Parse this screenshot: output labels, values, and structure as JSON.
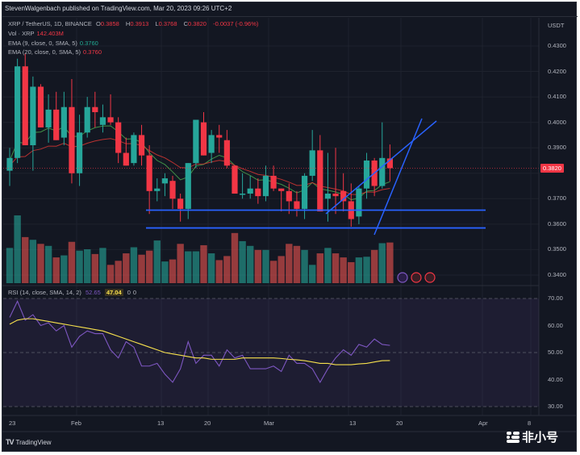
{
  "publisher": "StevenWalgenbach published on TradingView.com, Mar 20, 2023 09:26 UTC+2",
  "legend": {
    "symbol": "XRP / TetherUS, 1D, BINANCE",
    "o_label": "O",
    "o_value": "0.3858",
    "h_label": "H",
    "h_value": "0.3913",
    "l_label": "L",
    "l_value": "0.3768",
    "c_label": "C",
    "c_value": "0.3820",
    "change": "-0.0037 (-0.96%)",
    "vol_label": "Vol · XRP",
    "vol_value": "142.403M",
    "ema9_label": "EMA (9, close, 0, SMA, 5)",
    "ema9_value": "0.3760",
    "ema20_label": "EMA (20, close, 0, SMA, 5)",
    "ema20_value": "0.3760"
  },
  "rsi_legend": {
    "label": "RSI (14, close, SMA, 14, 2)",
    "rsi_value": "52.65",
    "sma_value": "47.04",
    "extra1": "0",
    "extra2": "0"
  },
  "price_axis": {
    "unit": "USDT",
    "ticks": [
      "0.4300",
      "0.4200",
      "0.4100",
      "0.4000",
      "0.3900",
      "0.3700",
      "0.3600",
      "0.3500",
      "0.3400"
    ],
    "current_price": "0.3820"
  },
  "rsi_axis": {
    "ticks": [
      "70.00",
      "60.00",
      "50.00",
      "40.00",
      "30.00"
    ]
  },
  "time_axis": {
    "ticks": [
      "23",
      "Feb",
      "13",
      "20",
      "Mar",
      "13",
      "20",
      "Apr",
      "8"
    ]
  },
  "footer": {
    "brand": "TradingView",
    "watermark": "非小号"
  },
  "colors": {
    "background": "#131722",
    "up": "#26a69a",
    "down": "#f23645",
    "ema9": "#4caf50",
    "ema20": "#e53935",
    "trendline": "#2962ff",
    "rsi": "#7e57c2",
    "rsi_sma": "#f7e14d"
  },
  "chart_data": [
    {
      "type": "candlestick",
      "title": "XRP / TetherUS, 1D, BINANCE",
      "ylabel": "USDT",
      "ylim": [
        0.337,
        0.435
      ],
      "x_tick_labels": [
        "23",
        "Feb",
        "13",
        "20",
        "Mar",
        "13",
        "20",
        "Apr",
        "8"
      ],
      "candles": [
        [
          0.381,
          0.39,
          0.375,
          0.386
        ],
        [
          0.386,
          0.425,
          0.384,
          0.422
        ],
        [
          0.422,
          0.427,
          0.391,
          0.391
        ],
        [
          0.391,
          0.418,
          0.381,
          0.414
        ],
        [
          0.414,
          0.415,
          0.398,
          0.398
        ],
        [
          0.398,
          0.411,
          0.392,
          0.405
        ],
        [
          0.405,
          0.412,
          0.393,
          0.393
        ],
        [
          0.394,
          0.412,
          0.391,
          0.406
        ],
        [
          0.406,
          0.417,
          0.376,
          0.38
        ],
        [
          0.38,
          0.403,
          0.375,
          0.396
        ],
        [
          0.396,
          0.41,
          0.394,
          0.406
        ],
        [
          0.406,
          0.412,
          0.398,
          0.404
        ],
        [
          0.399,
          0.407,
          0.396,
          0.402
        ],
        [
          0.402,
          0.411,
          0.399,
          0.4
        ],
        [
          0.4,
          0.402,
          0.384,
          0.388
        ],
        [
          0.388,
          0.394,
          0.383,
          0.383
        ],
        [
          0.384,
          0.396,
          0.383,
          0.395
        ],
        [
          0.395,
          0.399,
          0.383,
          0.387
        ],
        [
          0.387,
          0.391,
          0.364,
          0.373
        ],
        [
          0.373,
          0.378,
          0.369,
          0.374
        ],
        [
          0.376,
          0.38,
          0.371,
          0.378
        ],
        [
          0.377,
          0.379,
          0.366,
          0.37
        ],
        [
          0.37,
          0.372,
          0.361,
          0.366
        ],
        [
          0.366,
          0.384,
          0.362,
          0.384
        ],
        [
          0.384,
          0.401,
          0.382,
          0.401
        ],
        [
          0.4,
          0.404,
          0.387,
          0.387
        ],
        [
          0.388,
          0.397,
          0.384,
          0.395
        ],
        [
          0.395,
          0.399,
          0.388,
          0.394
        ],
        [
          0.393,
          0.397,
          0.382,
          0.383
        ],
        [
          0.383,
          0.383,
          0.372,
          0.372
        ],
        [
          0.372,
          0.38,
          0.37,
          0.372
        ],
        [
          0.372,
          0.379,
          0.37,
          0.374
        ],
        [
          0.374,
          0.378,
          0.368,
          0.371
        ],
        [
          0.371,
          0.383,
          0.369,
          0.379
        ],
        [
          0.379,
          0.383,
          0.373,
          0.374
        ],
        [
          0.374,
          0.374,
          0.365,
          0.373
        ],
        [
          0.373,
          0.376,
          0.364,
          0.369
        ],
        [
          0.369,
          0.373,
          0.363,
          0.366
        ],
        [
          0.366,
          0.38,
          0.362,
          0.379
        ],
        [
          0.379,
          0.397,
          0.377,
          0.389
        ],
        [
          0.389,
          0.395,
          0.365,
          0.365
        ],
        [
          0.37,
          0.388,
          0.361,
          0.372
        ],
        [
          0.372,
          0.39,
          0.364,
          0.371
        ],
        [
          0.373,
          0.38,
          0.365,
          0.369
        ],
        [
          0.369,
          0.376,
          0.359,
          0.362
        ],
        [
          0.363,
          0.375,
          0.36,
          0.374
        ],
        [
          0.374,
          0.388,
          0.37,
          0.385
        ],
        [
          0.385,
          0.386,
          0.371,
          0.375
        ],
        [
          0.375,
          0.4,
          0.374,
          0.386
        ],
        [
          0.3858,
          0.3913,
          0.3768,
          0.382
        ]
      ],
      "volume": [
        52,
        100,
        68,
        64,
        58,
        55,
        38,
        41,
        61,
        48,
        50,
        43,
        52,
        27,
        33,
        44,
        53,
        42,
        48,
        63,
        32,
        35,
        58,
        47,
        47,
        56,
        44,
        34,
        40,
        74,
        62,
        55,
        49,
        49,
        33,
        40,
        58,
        55,
        49,
        27,
        44,
        52,
        44,
        38,
        31,
        38,
        39,
        49,
        59,
        60
      ],
      "ema9_value": 0.376,
      "ema20_value": 0.376,
      "horizontal_levels": [
        0.3655,
        0.3585
      ],
      "trendlines": [
        {
          "from_index": 38,
          "from_price": 0.3675,
          "to_index": 52,
          "to_price": 0.4
        },
        {
          "from_index": 43,
          "from_price": 0.3555,
          "to_index": 50,
          "to_price": 0.402
        }
      ]
    },
    {
      "type": "line",
      "title": "RSI (14, close, SMA, 14, 2)",
      "ylim": [
        28,
        72
      ],
      "y_ticks": [
        70,
        60,
        50,
        40,
        30
      ],
      "series": [
        {
          "name": "RSI",
          "values": [
            63,
            69,
            62,
            64,
            60,
            61,
            58,
            60,
            52,
            56,
            58,
            57,
            57,
            51,
            48,
            54,
            52,
            45,
            45,
            46,
            42,
            39,
            44,
            54,
            46,
            49,
            49,
            45,
            51,
            48,
            49,
            44,
            44,
            44,
            45,
            43,
            49,
            46,
            46,
            44,
            39,
            44,
            48,
            51,
            49,
            53,
            52,
            55,
            53,
            52.65
          ]
        },
        {
          "name": "RSI-based MA",
          "values": [
            60.5,
            62,
            62.5,
            62.5,
            62,
            61.5,
            61,
            60.5,
            60,
            59.5,
            59,
            58.5,
            58,
            57,
            56,
            55,
            54,
            53,
            52,
            51,
            50,
            49.5,
            49,
            48.5,
            48,
            48,
            47.5,
            47.5,
            47.5,
            47.5,
            48,
            48,
            48,
            48,
            48,
            47.8,
            47.5,
            47.3,
            47,
            46.5,
            46,
            46,
            45.5,
            45.5,
            45.5,
            45.8,
            46,
            46.5,
            47,
            47.04
          ]
        }
      ]
    }
  ]
}
